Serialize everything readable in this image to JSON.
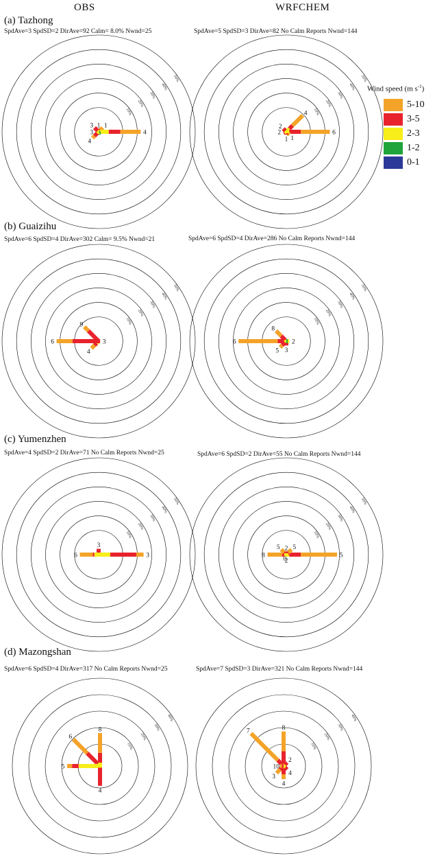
{
  "column_titles": {
    "obs": "OBS",
    "model": "WRFCHEM"
  },
  "legend": {
    "title": "Wind speed (m s",
    "title_sup": "-1",
    "title_close": ")",
    "items": [
      {
        "label": "5-10",
        "color": "#f4a329"
      },
      {
        "label": "3-5",
        "color": "#e8232d"
      },
      {
        "label": "2-3",
        "color": "#f7ee1a"
      },
      {
        "label": "1-2",
        "color": "#1ea43a"
      },
      {
        "label": "0-1",
        "color": "#2b3a98"
      }
    ]
  },
  "ring_labels": {
    "order": [
      "10%",
      "20%",
      "30%",
      "40%",
      "50%"
    ]
  },
  "panels": [
    {
      "label": "(a) Tazhong",
      "obs_stats": "SpdAve=3  SpdSD=2  DirAve=92   Calm= 8.0%   Nwnd=25",
      "model_stats": "SpdAve=5  SpdSD=3  DirAve=82   No Calm Reports  Nwnd=144"
    },
    {
      "label": "(b) Guaizihu",
      "obs_stats": "SpdAve=6  SpdSD=4  DirAve=302   Calm= 9.5%   Nwnd=21",
      "model_stats": "SpdAve=6  SpdSD=4  DirAve=286   No Calm Reports   Nwnd=144"
    },
    {
      "label": "(c) Yumenzhen",
      "obs_stats": "SpdAve=4  SpdSD=2  DirAve=71   No Calm Reports   Nwnd=25",
      "model_stats": "SpdAve=6  SpdSD=2  DirAve=55   No Calm Reports  Nwnd=144"
    },
    {
      "label": "(d) Mazongshan",
      "obs_stats": "SpdAve=6  SpdSD=4  DirAve=317   No Calm Reports  Nwnd=25",
      "model_stats": "SpdAve=7  SpdSD=3  DirAve=321   No Calm Reports  Nwnd=144"
    }
  ],
  "chart_data": [
    {
      "type": "wind_rose",
      "title": "(a) Tazhong OBS",
      "rings": [
        "10%",
        "20%",
        "30%",
        "40%",
        "50%"
      ],
      "max_percent": 50,
      "bins": [
        "0-1",
        "1-2",
        "2-3",
        "3-5",
        "5-10"
      ],
      "petals": [
        {
          "dir": 0,
          "label": "1",
          "segments": [
            0,
            1,
            1,
            0,
            0
          ]
        },
        {
          "dir": 45,
          "label": "1",
          "segments": [
            0,
            0,
            1,
            1,
            2
          ]
        },
        {
          "dir": 90,
          "label": "4",
          "segments": [
            0,
            1,
            6,
            8,
            14
          ]
        },
        {
          "dir": 180,
          "label": "",
          "segments": [
            0,
            2,
            0,
            0,
            0
          ]
        },
        {
          "dir": 225,
          "label": "4",
          "segments": [
            0,
            0,
            1,
            3,
            2
          ]
        },
        {
          "dir": 270,
          "label": "3",
          "segments": [
            0,
            0,
            1,
            1,
            0
          ]
        },
        {
          "dir": 315,
          "label": "3",
          "segments": [
            0,
            0,
            1,
            3,
            0
          ]
        }
      ]
    },
    {
      "type": "wind_rose",
      "title": "(a) Tazhong WRFCHEM",
      "rings": [
        "10%",
        "20%",
        "30%",
        "40%",
        "50%"
      ],
      "max_percent": 50,
      "bins": [
        "0-1",
        "1-2",
        "2-3",
        "3-5",
        "5-10"
      ],
      "petals": [
        {
          "dir": 45,
          "label": "4",
          "segments": [
            0,
            1,
            2,
            3,
            10
          ]
        },
        {
          "dir": 90,
          "label": "6",
          "segments": [
            0,
            1,
            1,
            8,
            20
          ]
        },
        {
          "dir": 135,
          "label": "1",
          "segments": [
            0,
            0,
            2,
            0,
            1
          ]
        },
        {
          "dir": 180,
          "label": "1",
          "segments": [
            0,
            0,
            1,
            1,
            0
          ]
        },
        {
          "dir": 270,
          "label": "2",
          "segments": [
            0,
            0,
            1,
            1,
            0
          ]
        },
        {
          "dir": 315,
          "label": "2",
          "segments": [
            0,
            0,
            1,
            2,
            0
          ]
        }
      ]
    },
    {
      "type": "wind_rose",
      "title": "(b) Guaizihu OBS",
      "rings": [
        "10%",
        "20%",
        "30%",
        "40%",
        "50%"
      ],
      "max_percent": 50,
      "bins": [
        "0-1",
        "1-2",
        "2-3",
        "3-5",
        "5-10"
      ],
      "petals": [
        {
          "dir": 225,
          "label": "4",
          "segments": [
            0,
            1,
            1,
            2,
            3
          ]
        },
        {
          "dir": 270,
          "label": "6",
          "segments": [
            0,
            0,
            0,
            18,
            11
          ]
        },
        {
          "dir": 315,
          "label": "9",
          "segments": [
            0,
            0,
            0,
            10,
            4
          ]
        },
        {
          "dir": 90,
          "label": "3",
          "segments": [
            0,
            0,
            0,
            1,
            0
          ]
        }
      ]
    },
    {
      "type": "wind_rose",
      "title": "(b) Guaizihu WRFCHEM",
      "rings": [
        "10%",
        "20%",
        "30%",
        "40%",
        "50%"
      ],
      "max_percent": 50,
      "bins": [
        "0-1",
        "1-2",
        "2-3",
        "3-5",
        "5-10"
      ],
      "petals": [
        {
          "dir": 270,
          "label": "6",
          "segments": [
            0,
            0,
            1,
            5,
            27
          ]
        },
        {
          "dir": 315,
          "label": "8",
          "segments": [
            0,
            0,
            1,
            4,
            5
          ]
        },
        {
          "dir": 225,
          "label": "5",
          "segments": [
            0,
            0,
            1,
            3,
            2
          ]
        },
        {
          "dir": 180,
          "label": "3",
          "segments": [
            0,
            0,
            1,
            2,
            0
          ]
        },
        {
          "dir": 90,
          "label": "2",
          "segments": [
            0,
            1,
            1,
            0,
            0
          ]
        }
      ]
    },
    {
      "type": "wind_rose",
      "title": "(c) Yumenzhen OBS",
      "rings": [
        "10%",
        "20%",
        "30%",
        "40%",
        "50%"
      ],
      "max_percent": 50,
      "bins": [
        "0-1",
        "1-2",
        "2-3",
        "3-5",
        "5-10"
      ],
      "petals": [
        {
          "dir": 0,
          "label": "3",
          "segments": [
            0,
            0,
            1,
            3,
            0
          ]
        },
        {
          "dir": 90,
          "label": "3",
          "segments": [
            0,
            0,
            8,
            18,
            5
          ]
        },
        {
          "dir": 270,
          "label": "6",
          "segments": [
            0,
            0,
            3,
            1,
            9
          ]
        }
      ]
    },
    {
      "type": "wind_rose",
      "title": "(c) Yumenzhen WRFCHEM",
      "rings": [
        "10%",
        "20%",
        "30%",
        "40%",
        "50%"
      ],
      "max_percent": 50,
      "bins": [
        "0-1",
        "1-2",
        "2-3",
        "3-5",
        "5-10"
      ],
      "petals": [
        {
          "dir": 90,
          "label": "5",
          "segments": [
            0,
            0,
            2,
            8,
            25
          ]
        },
        {
          "dir": 270,
          "label": "8",
          "segments": [
            0,
            0,
            1,
            2,
            10
          ]
        },
        {
          "dir": 315,
          "label": "5",
          "segments": [
            0,
            0,
            1,
            1,
            3
          ]
        },
        {
          "dir": 45,
          "label": "5",
          "segments": [
            0,
            0,
            1,
            1,
            3
          ]
        },
        {
          "dir": 0,
          "label": "2",
          "segments": [
            0,
            0,
            1,
            1,
            0
          ]
        },
        {
          "dir": 180,
          "label": "2",
          "segments": [
            0,
            0,
            1,
            0,
            0
          ]
        },
        {
          "dir": 200,
          "label": "0",
          "segments": [
            0,
            0,
            0,
            0,
            0
          ]
        }
      ]
    },
    {
      "type": "wind_rose",
      "title": "(d) Mazongshan OBS",
      "rings": [
        "10%",
        "20%",
        "30%",
        "40%"
      ],
      "max_percent": 40,
      "bins": [
        "0-1",
        "1-2",
        "2-3",
        "3-5",
        "5-10"
      ],
      "petals": [
        {
          "dir": 0,
          "label": "8",
          "segments": [
            0,
            0,
            2,
            6,
            12
          ]
        },
        {
          "dir": 315,
          "label": "6",
          "segments": [
            0,
            0,
            2,
            9,
            12
          ]
        },
        {
          "dir": 270,
          "label": "5",
          "segments": [
            0,
            0,
            13,
            4,
            3
          ]
        },
        {
          "dir": 180,
          "label": "4",
          "segments": [
            0,
            0,
            1,
            11,
            0
          ]
        }
      ]
    },
    {
      "type": "wind_rose",
      "title": "(d) Mazongshan WRFCHEM",
      "rings": [
        "10%",
        "20%",
        "30%",
        "40%"
      ],
      "max_percent": 40,
      "bins": [
        "0-1",
        "1-2",
        "2-3",
        "3-5",
        "5-10"
      ],
      "petals": [
        {
          "dir": 0,
          "label": "8",
          "segments": [
            0,
            0,
            1,
            8,
            12
          ]
        },
        {
          "dir": 315,
          "label": "7",
          "segments": [
            0,
            0,
            1,
            4,
            23
          ]
        },
        {
          "dir": 45,
          "label": "2",
          "segments": [
            0,
            0,
            1,
            2,
            0
          ]
        },
        {
          "dir": 135,
          "label": "4",
          "segments": [
            0,
            0,
            1,
            2,
            0
          ]
        },
        {
          "dir": 180,
          "label": "4",
          "segments": [
            0,
            0,
            1,
            4,
            3
          ]
        },
        {
          "dir": 225,
          "label": "3",
          "segments": [
            0,
            0,
            1,
            2,
            3
          ]
        },
        {
          "dir": 270,
          "label": "10",
          "segments": [
            0,
            0,
            0,
            1,
            1
          ]
        }
      ]
    }
  ]
}
